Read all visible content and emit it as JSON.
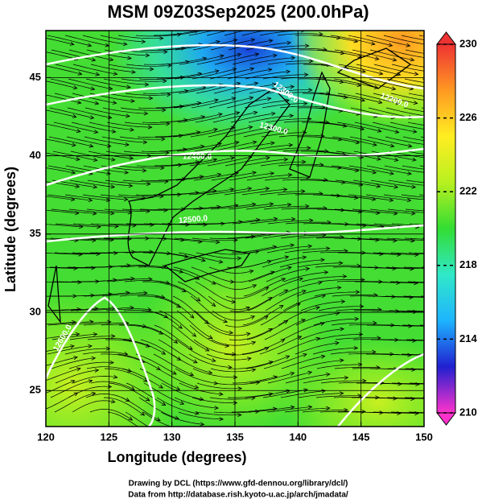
{
  "chart_data": {
    "type": "map",
    "title": "MSM 09Z03Sep2025 (200.0hPa)",
    "xlabel": "Longitude (degrees)",
    "ylabel": "Latitude  (degrees)",
    "xlim": [
      120,
      150
    ],
    "ylim": [
      22.7,
      48
    ],
    "xticks": [
      120,
      125,
      130,
      135,
      140,
      145,
      150
    ],
    "yticks": [
      25,
      30,
      35,
      40,
      45
    ],
    "grid": true,
    "colorbar": {
      "lim": [
        210,
        230
      ],
      "ticks": [
        210,
        214,
        218,
        222,
        226,
        230
      ],
      "colors": [
        "#ff33cc",
        "#2020d0",
        "#1eb4ff",
        "#30e8c8",
        "#33dd33",
        "#b8f020",
        "#ffee22",
        "#ff9922",
        "#ee3333"
      ]
    },
    "contour_labels": [
      "12300.0",
      "12200.0",
      "12300.0",
      "12400.0",
      "12500.0",
      "12600.0"
    ],
    "footer": [
      "Drawing by DCL (https://www.gfd-dennou.org/library/dcl/)",
      "Data from http://database.rish.kyoto-u.ac.jp/arch/jmadata/"
    ]
  }
}
